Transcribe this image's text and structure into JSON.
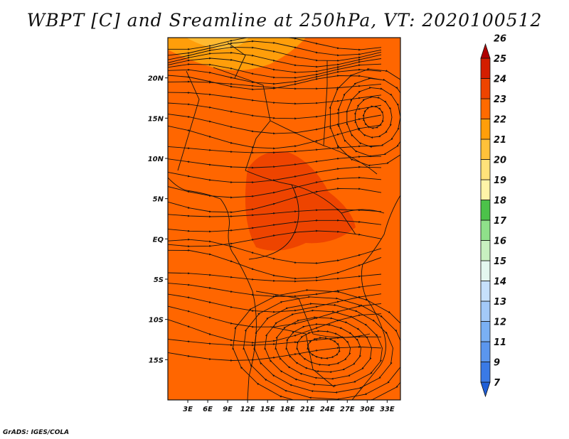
{
  "title": "WBPT [C] and Sreamline at 250hPa, VT: 2020100512",
  "credit": "GrADS: IGES/COLA",
  "map": {
    "lat_labels": [
      "20N",
      "15N",
      "10N",
      "5N",
      "EQ",
      "5S",
      "10S",
      "15S"
    ],
    "lat_values": [
      20,
      15,
      10,
      5,
      0,
      -5,
      -10,
      -15
    ],
    "lon_labels": [
      "3E",
      "6E",
      "9E",
      "12E",
      "15E",
      "18E",
      "21E",
      "24E",
      "27E",
      "30E",
      "33E"
    ],
    "lon_values": [
      3,
      6,
      9,
      12,
      15,
      18,
      21,
      24,
      27,
      30,
      33
    ],
    "lat_range": [
      -20,
      25
    ],
    "lon_range": [
      0,
      35
    ],
    "background_color": "#ff6600"
  },
  "colorbar": {
    "labels": [
      "7",
      "9",
      "11",
      "12",
      "13",
      "14",
      "15",
      "16",
      "17",
      "18",
      "19",
      "20",
      "21",
      "22",
      "23",
      "24",
      "25",
      "26"
    ],
    "colors": [
      "#1f5fd8",
      "#3a7ae6",
      "#5b96ee",
      "#7ab0f4",
      "#a3c9f8",
      "#c6e0fb",
      "#e4f7ef",
      "#c8f0c0",
      "#8fe08a",
      "#4cc24a",
      "#fff4a8",
      "#ffe27a",
      "#ffc13a",
      "#ff9e0a",
      "#ff6a00",
      "#ee4400",
      "#d41e00",
      "#b00000"
    ]
  },
  "chart_data": {
    "type": "heatmap",
    "title": "WBPT [C] and Sreamline at 250hPa, VT: 2020100512",
    "variable": "WBPT [C]",
    "level": "250hPa",
    "valid_time": "2020100512",
    "x_ticks": [
      "3E",
      "6E",
      "9E",
      "12E",
      "15E",
      "18E",
      "21E",
      "24E",
      "27E",
      "30E",
      "33E"
    ],
    "y_ticks": [
      "20N",
      "15N",
      "10N",
      "5N",
      "EQ",
      "5S",
      "10S",
      "15S"
    ],
    "legend_levels": [
      7,
      9,
      11,
      12,
      13,
      14,
      15,
      16,
      17,
      18,
      19,
      20,
      21,
      22,
      23,
      24,
      25,
      26
    ],
    "legend_placement": "right",
    "dominant_range": [
      23,
      24
    ],
    "regions": [
      {
        "area": "far north (20N-25N, 3E-18E)",
        "range": [
          21,
          22
        ]
      },
      {
        "area": "central Africa (0-10N, 13E-22E)",
        "range": [
          24,
          25
        ]
      },
      {
        "area": "rest of domain",
        "range": [
          23,
          24
        ]
      }
    ]
  }
}
